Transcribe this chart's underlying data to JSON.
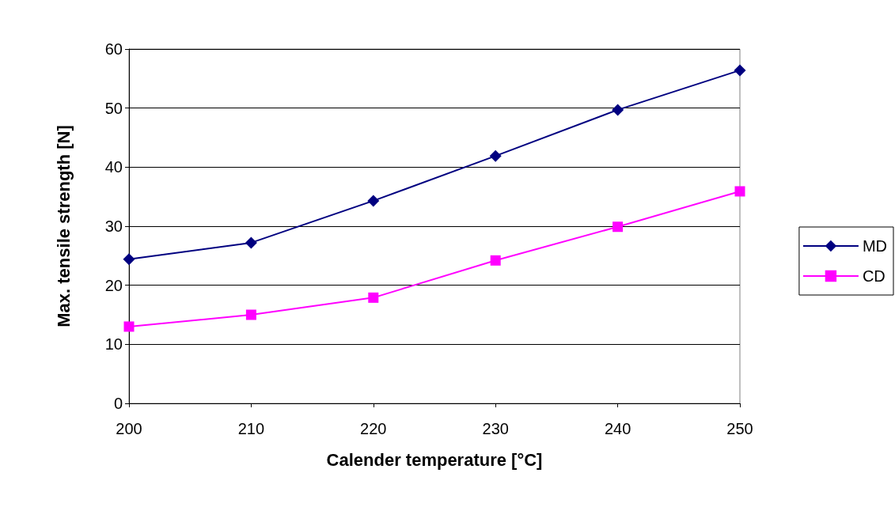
{
  "chart_data": {
    "type": "line",
    "xlabel": "Calender temperature [°C]",
    "ylabel": "Max. tensile strength [N]",
    "x": [
      200,
      210,
      220,
      230,
      240,
      250
    ],
    "series": [
      {
        "name": "MD",
        "color": "#000080",
        "marker": "diamond",
        "values": [
          24.4,
          27.2,
          34.3,
          41.9,
          49.7,
          56.4
        ]
      },
      {
        "name": "CD",
        "color": "#ff00ff",
        "marker": "square",
        "values": [
          13.0,
          15.0,
          17.9,
          24.2,
          29.9,
          35.9
        ]
      }
    ],
    "xlim": [
      200,
      250
    ],
    "xticks": [
      200,
      210,
      220,
      230,
      240,
      250
    ],
    "ylim": [
      0,
      60
    ],
    "yticks": [
      0,
      10,
      20,
      30,
      40,
      50,
      60
    ],
    "grid": "y",
    "legend": "right",
    "line_style": "solid"
  }
}
